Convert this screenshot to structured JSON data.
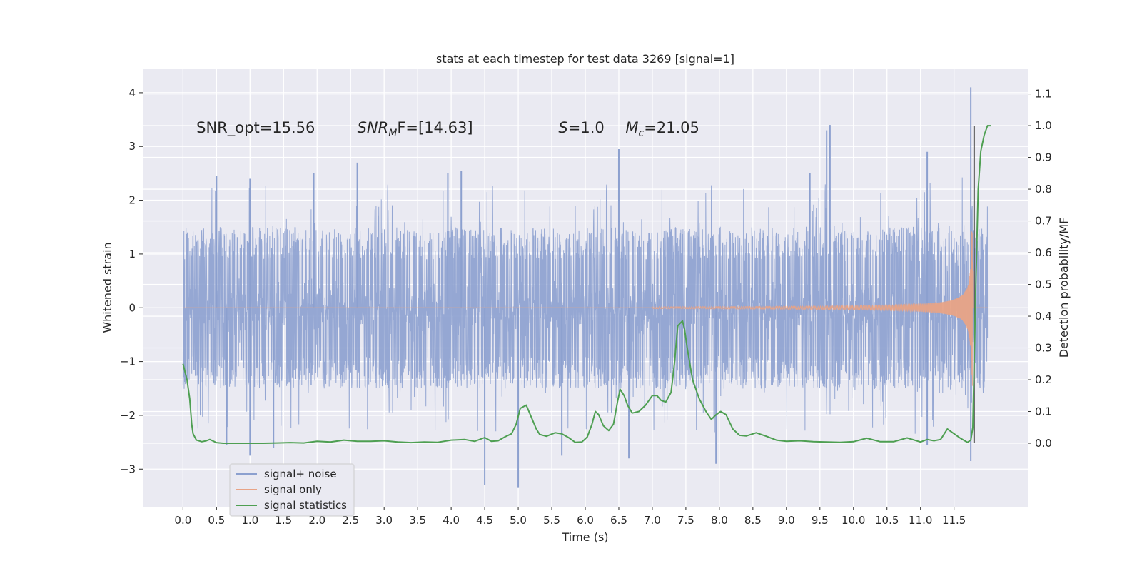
{
  "chart_data": {
    "type": "line",
    "title": "stats at each timestep for test data 3269 [signal=1]",
    "xlabel": "Time (s)",
    "ylabel": "Whitened strain",
    "y2label": "Detection probability/MF",
    "xlim": [
      -0.6,
      12.6
    ],
    "ylim": [
      -3.7,
      4.45
    ],
    "y2lim": [
      -0.2,
      1.18
    ],
    "xticks": [
      "0.0",
      "0.5",
      "1.0",
      "1.5",
      "2.0",
      "2.5",
      "3.0",
      "3.5",
      "4.0",
      "4.5",
      "5.0",
      "5.5",
      "6.0",
      "6.5",
      "7.0",
      "7.5",
      "8.0",
      "8.5",
      "9.0",
      "9.5",
      "10.0",
      "10.5",
      "11.0",
      "11.5"
    ],
    "yticks": [
      "−3",
      "−2",
      "−1",
      "0",
      "1",
      "2",
      "3",
      "4"
    ],
    "y2ticks": [
      "0.0",
      "0.1",
      "0.2",
      "0.3",
      "0.4",
      "0.5",
      "0.6",
      "0.7",
      "0.8",
      "0.9",
      "1.0",
      "1.1"
    ],
    "grid": true,
    "legend": "lower-left",
    "annotations": [
      {
        "text": "SNR_opt=15.56",
        "x": 0.2,
        "y": 3.35
      },
      {
        "sym": "SNR",
        "sub": "M",
        "rest": "F=[14.63]",
        "x": 2.6,
        "y": 3.35
      },
      {
        "sym": "S",
        "rest": "=1.0",
        "x": 5.6,
        "y": 3.35
      },
      {
        "sym": "M",
        "sub": "c",
        "rest": "=21.05",
        "x": 6.6,
        "y": 3.35
      }
    ],
    "series": [
      {
        "name": "signal+ noise",
        "color": "#8ca0cf",
        "x_range": [
          0.0,
          12.0
        ],
        "noise_envelope": 1.5,
        "peak_values": [
          {
            "x": 0.5,
            "y": 2.45
          },
          {
            "x": 1.0,
            "y": 2.4
          },
          {
            "x": 1.95,
            "y": 2.5
          },
          {
            "x": 2.6,
            "y": 2.7
          },
          {
            "x": 3.95,
            "y": 2.5
          },
          {
            "x": 4.15,
            "y": 2.55
          },
          {
            "x": 6.5,
            "y": 2.95
          },
          {
            "x": 9.35,
            "y": 2.5
          },
          {
            "x": 9.6,
            "y": 3.3
          },
          {
            "x": 9.65,
            "y": 3.4
          },
          {
            "x": 11.1,
            "y": 2.9
          },
          {
            "x": 11.75,
            "y": 4.1
          },
          {
            "x": 0.65,
            "y": -2.55
          },
          {
            "x": 1.0,
            "y": -2.75
          },
          {
            "x": 1.35,
            "y": -2.6
          },
          {
            "x": 4.5,
            "y": -3.3
          },
          {
            "x": 5.0,
            "y": -3.35
          },
          {
            "x": 5.65,
            "y": -2.75
          },
          {
            "x": 6.65,
            "y": -2.8
          },
          {
            "x": 7.95,
            "y": -2.9
          },
          {
            "x": 11.1,
            "y": -2.55
          },
          {
            "x": 11.75,
            "y": -2.85
          }
        ]
      },
      {
        "name": "signal only",
        "color": "#e8a386",
        "x_range": [
          0.0,
          12.0
        ],
        "chirp": {
          "start_x": 7.0,
          "merger_x": 11.75,
          "peak_amplitude": 2.4
        }
      },
      {
        "name": "signal statistics",
        "color": "#4e9f52",
        "axis": "right",
        "points": [
          [
            0.0,
            0.25
          ],
          [
            0.06,
            0.2
          ],
          [
            0.1,
            0.14
          ],
          [
            0.13,
            0.06
          ],
          [
            0.15,
            0.03
          ],
          [
            0.2,
            0.01
          ],
          [
            0.28,
            0.005
          ],
          [
            0.35,
            0.008
          ],
          [
            0.4,
            0.012
          ],
          [
            0.5,
            0.002
          ],
          [
            0.6,
            0.0
          ],
          [
            0.8,
            0.0
          ],
          [
            1.0,
            0.0
          ],
          [
            1.2,
            0.0
          ],
          [
            1.4,
            0.001
          ],
          [
            1.6,
            0.002
          ],
          [
            1.8,
            0.001
          ],
          [
            2.0,
            0.006
          ],
          [
            2.2,
            0.004
          ],
          [
            2.4,
            0.01
          ],
          [
            2.6,
            0.006
          ],
          [
            2.8,
            0.006
          ],
          [
            3.0,
            0.008
          ],
          [
            3.2,
            0.004
          ],
          [
            3.4,
            0.002
          ],
          [
            3.6,
            0.004
          ],
          [
            3.8,
            0.003
          ],
          [
            4.0,
            0.01
          ],
          [
            4.2,
            0.012
          ],
          [
            4.35,
            0.006
          ],
          [
            4.5,
            0.018
          ],
          [
            4.6,
            0.006
          ],
          [
            4.7,
            0.008
          ],
          [
            4.8,
            0.02
          ],
          [
            4.9,
            0.03
          ],
          [
            4.97,
            0.06
          ],
          [
            5.03,
            0.11
          ],
          [
            5.12,
            0.12
          ],
          [
            5.2,
            0.08
          ],
          [
            5.27,
            0.045
          ],
          [
            5.32,
            0.028
          ],
          [
            5.42,
            0.022
          ],
          [
            5.55,
            0.033
          ],
          [
            5.65,
            0.03
          ],
          [
            5.75,
            0.018
          ],
          [
            5.85,
            0.003
          ],
          [
            5.95,
            0.004
          ],
          [
            6.03,
            0.02
          ],
          [
            6.1,
            0.06
          ],
          [
            6.15,
            0.1
          ],
          [
            6.2,
            0.09
          ],
          [
            6.27,
            0.055
          ],
          [
            6.35,
            0.04
          ],
          [
            6.42,
            0.06
          ],
          [
            6.48,
            0.13
          ],
          [
            6.52,
            0.17
          ],
          [
            6.58,
            0.15
          ],
          [
            6.63,
            0.12
          ],
          [
            6.7,
            0.095
          ],
          [
            6.8,
            0.1
          ],
          [
            6.9,
            0.12
          ],
          [
            7.0,
            0.15
          ],
          [
            7.07,
            0.15
          ],
          [
            7.13,
            0.135
          ],
          [
            7.2,
            0.13
          ],
          [
            7.28,
            0.16
          ],
          [
            7.33,
            0.25
          ],
          [
            7.38,
            0.37
          ],
          [
            7.45,
            0.385
          ],
          [
            7.48,
            0.36
          ],
          [
            7.52,
            0.3
          ],
          [
            7.6,
            0.2
          ],
          [
            7.7,
            0.14
          ],
          [
            7.8,
            0.1
          ],
          [
            7.88,
            0.075
          ],
          [
            7.95,
            0.09
          ],
          [
            8.02,
            0.1
          ],
          [
            8.1,
            0.09
          ],
          [
            8.2,
            0.045
          ],
          [
            8.3,
            0.025
          ],
          [
            8.4,
            0.023
          ],
          [
            8.55,
            0.033
          ],
          [
            8.7,
            0.022
          ],
          [
            8.85,
            0.01
          ],
          [
            9.0,
            0.006
          ],
          [
            9.2,
            0.008
          ],
          [
            9.4,
            0.005
          ],
          [
            9.6,
            0.004
          ],
          [
            9.8,
            0.003
          ],
          [
            10.0,
            0.005
          ],
          [
            10.2,
            0.016
          ],
          [
            10.4,
            0.005
          ],
          [
            10.6,
            0.005
          ],
          [
            10.8,
            0.017
          ],
          [
            11.0,
            0.004
          ],
          [
            11.1,
            0.012
          ],
          [
            11.2,
            0.008
          ],
          [
            11.3,
            0.012
          ],
          [
            11.4,
            0.045
          ],
          [
            11.5,
            0.03
          ],
          [
            11.6,
            0.015
          ],
          [
            11.7,
            0.003
          ],
          [
            11.75,
            0.01
          ],
          [
            11.78,
            0.05
          ],
          [
            11.82,
            0.45
          ],
          [
            11.86,
            0.8
          ],
          [
            11.9,
            0.92
          ],
          [
            11.95,
            0.97
          ],
          [
            12.0,
            1.0
          ],
          [
            12.05,
            1.0
          ]
        ]
      }
    ],
    "vertical_markers": [
      {
        "x": 11.8,
        "from": 0.0,
        "to": 1.0,
        "axis": "right",
        "color": "#555555"
      }
    ]
  }
}
